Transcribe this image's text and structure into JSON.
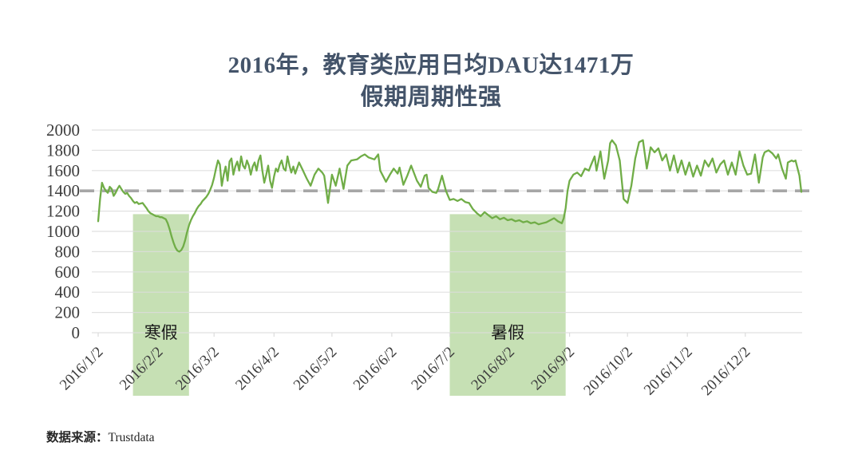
{
  "title": {
    "line1": "2016年，教育类应用日均DAU达1471万",
    "line2": "假期周期性强"
  },
  "footer": {
    "label": "数据来源：",
    "source": "Trustdata"
  },
  "colors": {
    "line": "#70ad47",
    "region_fill": "#c6e0b4",
    "reference_line": "#a6a6a6",
    "gridline": "#dcdcdc",
    "title_text": "#44546a",
    "axis_text": "#3d3d3d"
  },
  "chart_data": {
    "type": "line",
    "title": "2016年，教育类应用日均DAU达1471万 假期周期性强",
    "xlabel": "",
    "ylabel": "",
    "x_unit": "days since 2016/1/2",
    "ylim": [
      0,
      2000
    ],
    "yticks": [
      0,
      200,
      400,
      600,
      800,
      1000,
      1200,
      1400,
      1600,
      1800,
      2000
    ],
    "xlim_days": [
      0,
      364
    ],
    "x_tick_labels": [
      "2016/1/2",
      "2016/2/2",
      "2016/3/2",
      "2016/4/2",
      "2016/5/2",
      "2016/6/2",
      "2016/7/2",
      "2016/8/2",
      "2016/9/2",
      "2016/10/2",
      "2016/11/2",
      "2016/12/2"
    ],
    "x_tick_days": [
      0,
      31,
      60,
      91,
      121,
      152,
      182,
      213,
      244,
      274,
      305,
      335
    ],
    "grid": true,
    "legend": "none",
    "reference_line": {
      "value": 1400,
      "style": "dashed"
    },
    "regions": [
      {
        "name": "winter-vacation",
        "label": "寒假",
        "start_day": 18,
        "end_day": 47,
        "top_value": 1170
      },
      {
        "name": "summer-vacation",
        "label": "暑假",
        "start_day": 182,
        "end_day": 242,
        "top_value": 1170
      }
    ],
    "series": [
      {
        "name": "教育类应用日均DAU（万）",
        "points": [
          [
            0,
            1100
          ],
          [
            1,
            1320
          ],
          [
            2,
            1480
          ],
          [
            3,
            1430
          ],
          [
            4,
            1400
          ],
          [
            5,
            1380
          ],
          [
            6,
            1440
          ],
          [
            7,
            1420
          ],
          [
            8,
            1350
          ],
          [
            9,
            1380
          ],
          [
            10,
            1420
          ],
          [
            11,
            1450
          ],
          [
            12,
            1420
          ],
          [
            13,
            1390
          ],
          [
            14,
            1370
          ],
          [
            15,
            1380
          ],
          [
            16,
            1350
          ],
          [
            17,
            1330
          ],
          [
            18,
            1300
          ],
          [
            19,
            1280
          ],
          [
            20,
            1290
          ],
          [
            21,
            1270
          ],
          [
            23,
            1280
          ],
          [
            25,
            1230
          ],
          [
            26,
            1200
          ],
          [
            27,
            1180
          ],
          [
            28,
            1170
          ],
          [
            29,
            1160
          ],
          [
            30,
            1150
          ],
          [
            31,
            1150
          ],
          [
            32,
            1140
          ],
          [
            33,
            1140
          ],
          [
            34,
            1130
          ],
          [
            35,
            1120
          ],
          [
            36,
            1080
          ],
          [
            37,
            1020
          ],
          [
            38,
            950
          ],
          [
            39,
            890
          ],
          [
            40,
            840
          ],
          [
            41,
            810
          ],
          [
            42,
            800
          ],
          [
            43,
            815
          ],
          [
            44,
            850
          ],
          [
            45,
            910
          ],
          [
            46,
            990
          ],
          [
            47,
            1060
          ],
          [
            48,
            1110
          ],
          [
            49,
            1150
          ],
          [
            50,
            1180
          ],
          [
            51,
            1220
          ],
          [
            52,
            1250
          ],
          [
            53,
            1270
          ],
          [
            54,
            1300
          ],
          [
            55,
            1320
          ],
          [
            56,
            1340
          ],
          [
            57,
            1370
          ],
          [
            58,
            1410
          ],
          [
            59,
            1460
          ],
          [
            60,
            1530
          ],
          [
            61,
            1620
          ],
          [
            62,
            1700
          ],
          [
            63,
            1660
          ],
          [
            64,
            1450
          ],
          [
            65,
            1560
          ],
          [
            66,
            1640
          ],
          [
            67,
            1500
          ],
          [
            68,
            1690
          ],
          [
            69,
            1720
          ],
          [
            70,
            1560
          ],
          [
            71,
            1640
          ],
          [
            72,
            1690
          ],
          [
            73,
            1600
          ],
          [
            74,
            1740
          ],
          [
            75,
            1650
          ],
          [
            76,
            1620
          ],
          [
            77,
            1700
          ],
          [
            78,
            1650
          ],
          [
            79,
            1560
          ],
          [
            80,
            1640
          ],
          [
            81,
            1680
          ],
          [
            82,
            1600
          ],
          [
            83,
            1700
          ],
          [
            84,
            1750
          ],
          [
            85,
            1600
          ],
          [
            86,
            1480
          ],
          [
            87,
            1560
          ],
          [
            88,
            1650
          ],
          [
            89,
            1500
          ],
          [
            90,
            1430
          ],
          [
            91,
            1540
          ],
          [
            92,
            1620
          ],
          [
            93,
            1590
          ],
          [
            94,
            1660
          ],
          [
            95,
            1700
          ],
          [
            96,
            1620
          ],
          [
            97,
            1600
          ],
          [
            98,
            1740
          ],
          [
            99,
            1650
          ],
          [
            100,
            1580
          ],
          [
            101,
            1640
          ],
          [
            102,
            1570
          ],
          [
            104,
            1680
          ],
          [
            106,
            1600
          ],
          [
            108,
            1520
          ],
          [
            110,
            1450
          ],
          [
            112,
            1560
          ],
          [
            114,
            1620
          ],
          [
            116,
            1580
          ],
          [
            117,
            1550
          ],
          [
            119,
            1280
          ],
          [
            121,
            1560
          ],
          [
            123,
            1450
          ],
          [
            125,
            1620
          ],
          [
            127,
            1420
          ],
          [
            129,
            1650
          ],
          [
            131,
            1700
          ],
          [
            134,
            1710
          ],
          [
            136,
            1740
          ],
          [
            138,
            1760
          ],
          [
            140,
            1730
          ],
          [
            143,
            1710
          ],
          [
            145,
            1760
          ],
          [
            146,
            1600
          ],
          [
            149,
            1490
          ],
          [
            151,
            1560
          ],
          [
            153,
            1620
          ],
          [
            155,
            1570
          ],
          [
            156,
            1630
          ],
          [
            158,
            1460
          ],
          [
            160,
            1550
          ],
          [
            162,
            1650
          ],
          [
            165,
            1500
          ],
          [
            167,
            1440
          ],
          [
            169,
            1550
          ],
          [
            170,
            1560
          ],
          [
            171,
            1430
          ],
          [
            173,
            1390
          ],
          [
            175,
            1380
          ],
          [
            176,
            1420
          ],
          [
            178,
            1550
          ],
          [
            180,
            1400
          ],
          [
            182,
            1310
          ],
          [
            184,
            1320
          ],
          [
            186,
            1300
          ],
          [
            188,
            1320
          ],
          [
            190,
            1290
          ],
          [
            192,
            1280
          ],
          [
            194,
            1220
          ],
          [
            196,
            1180
          ],
          [
            198,
            1150
          ],
          [
            200,
            1190
          ],
          [
            202,
            1160
          ],
          [
            204,
            1130
          ],
          [
            206,
            1150
          ],
          [
            208,
            1120
          ],
          [
            210,
            1135
          ],
          [
            212,
            1110
          ],
          [
            214,
            1120
          ],
          [
            216,
            1100
          ],
          [
            218,
            1110
          ],
          [
            220,
            1090
          ],
          [
            222,
            1100
          ],
          [
            224,
            1080
          ],
          [
            226,
            1090
          ],
          [
            228,
            1070
          ],
          [
            230,
            1080
          ],
          [
            232,
            1090
          ],
          [
            234,
            1110
          ],
          [
            236,
            1130
          ],
          [
            238,
            1100
          ],
          [
            240,
            1080
          ],
          [
            241,
            1130
          ],
          [
            242,
            1230
          ],
          [
            243,
            1400
          ],
          [
            244,
            1500
          ],
          [
            246,
            1560
          ],
          [
            248,
            1580
          ],
          [
            250,
            1545
          ],
          [
            252,
            1620
          ],
          [
            254,
            1600
          ],
          [
            255,
            1650
          ],
          [
            257,
            1740
          ],
          [
            258,
            1600
          ],
          [
            260,
            1790
          ],
          [
            262,
            1520
          ],
          [
            264,
            1700
          ],
          [
            265,
            1870
          ],
          [
            266,
            1900
          ],
          [
            268,
            1850
          ],
          [
            270,
            1700
          ],
          [
            272,
            1320
          ],
          [
            274,
            1280
          ],
          [
            276,
            1450
          ],
          [
            278,
            1720
          ],
          [
            280,
            1880
          ],
          [
            282,
            1900
          ],
          [
            284,
            1620
          ],
          [
            286,
            1830
          ],
          [
            288,
            1780
          ],
          [
            290,
            1820
          ],
          [
            292,
            1700
          ],
          [
            294,
            1760
          ],
          [
            296,
            1600
          ],
          [
            298,
            1750
          ],
          [
            300,
            1580
          ],
          [
            302,
            1700
          ],
          [
            304,
            1560
          ],
          [
            306,
            1680
          ],
          [
            308,
            1540
          ],
          [
            310,
            1650
          ],
          [
            312,
            1550
          ],
          [
            314,
            1700
          ],
          [
            316,
            1640
          ],
          [
            318,
            1720
          ],
          [
            320,
            1580
          ],
          [
            322,
            1660
          ],
          [
            324,
            1700
          ],
          [
            326,
            1560
          ],
          [
            328,
            1680
          ],
          [
            330,
            1560
          ],
          [
            332,
            1790
          ],
          [
            334,
            1650
          ],
          [
            336,
            1560
          ],
          [
            338,
            1570
          ],
          [
            340,
            1760
          ],
          [
            342,
            1480
          ],
          [
            344,
            1730
          ],
          [
            345,
            1780
          ],
          [
            347,
            1800
          ],
          [
            349,
            1770
          ],
          [
            351,
            1720
          ],
          [
            352,
            1760
          ],
          [
            354,
            1620
          ],
          [
            356,
            1520
          ],
          [
            357,
            1680
          ],
          [
            359,
            1700
          ],
          [
            360,
            1690
          ],
          [
            361,
            1700
          ],
          [
            363,
            1550
          ],
          [
            364,
            1390
          ]
        ]
      }
    ]
  }
}
